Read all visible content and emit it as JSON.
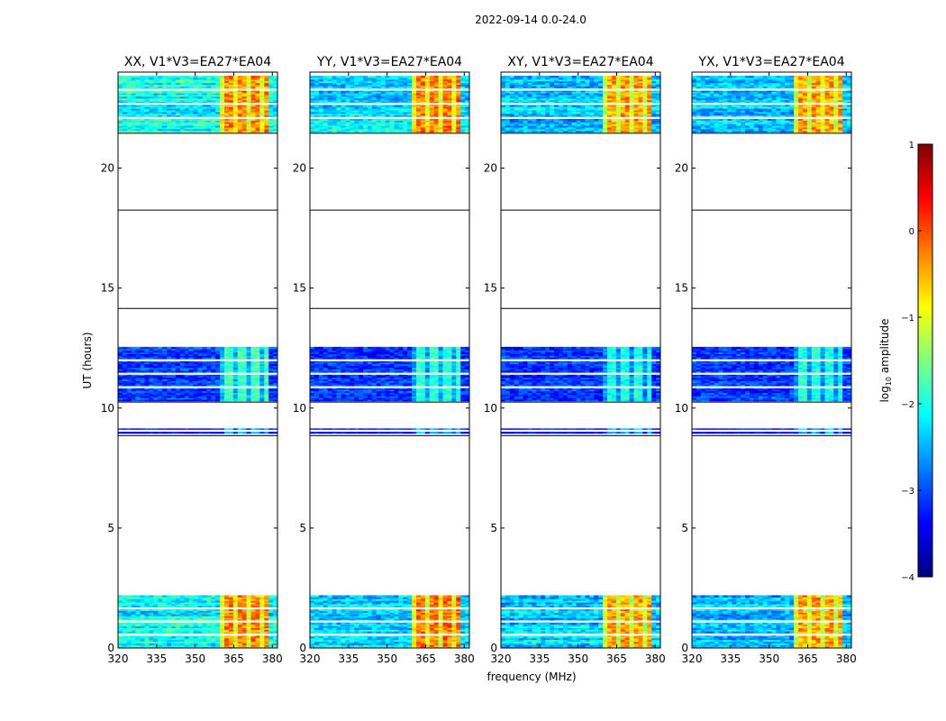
{
  "figure": {
    "title": "2022-09-14 0.0-24.0",
    "xlabel": "frequency (MHz)",
    "ylabel": "UT (hours)"
  },
  "colorbar": {
    "label_main": "log",
    "label_sub": "10",
    "label_suffix": " amplitude",
    "range": [
      -4,
      1
    ],
    "ticks": [
      -4,
      -3,
      -2,
      -1,
      0,
      1
    ],
    "tick_labels": [
      "−4",
      "−3",
      "−2",
      "−1",
      "0",
      "1"
    ],
    "colors": [
      "#00007f",
      "#0000ff",
      "#007fff",
      "#00ffff",
      "#7fff7f",
      "#ffff00",
      "#ff7f00",
      "#ff0000",
      "#7f0000"
    ]
  },
  "chart_data": {
    "type": "heatmap",
    "xlim": [
      320,
      382
    ],
    "ylim": [
      0,
      24
    ],
    "xticks": [
      320,
      335,
      350,
      365,
      380
    ],
    "yticks": [
      0,
      5,
      10,
      15,
      20
    ],
    "separator_lines_ut": [
      8.85,
      10.25,
      14.15,
      18.25,
      21.45
    ],
    "data_blocks_ut": [
      {
        "start": 0.0,
        "end": 2.2,
        "level": "high"
      },
      {
        "start": 8.95,
        "end": 9.15,
        "level": "low"
      },
      {
        "start": 10.3,
        "end": 12.55,
        "level": "mid"
      },
      {
        "start": 21.5,
        "end": 23.85,
        "level": "high"
      }
    ],
    "bright_band_mhz": [
      360,
      378
    ],
    "panels": [
      {
        "title": "XX, V1*V3=EA27*EA04",
        "base_log_amp": -2.1,
        "band_log_amp": -0.3,
        "mid_log_amp": -1.8
      },
      {
        "title": "YY, V1*V3=EA27*EA04",
        "base_log_amp": -2.3,
        "band_log_amp": -0.2,
        "mid_log_amp": -1.9
      },
      {
        "title": "XY, V1*V3=EA27*EA04",
        "base_log_amp": -2.4,
        "band_log_amp": -0.4,
        "mid_log_amp": -2.0
      },
      {
        "title": "YX, V1*V3=EA27*EA04",
        "base_log_amp": -2.4,
        "band_log_amp": -0.4,
        "mid_log_amp": -2.0
      }
    ]
  }
}
